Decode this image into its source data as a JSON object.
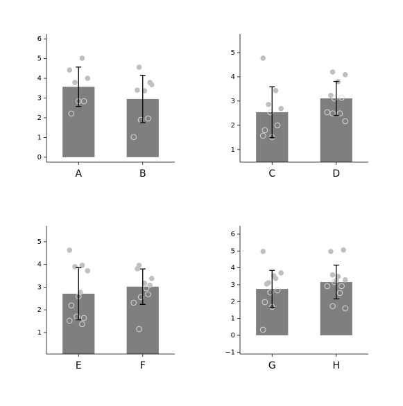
{
  "chart_data": [
    {
      "type": "bar",
      "categories": [
        "A",
        "B"
      ],
      "values": [
        3.57,
        2.95
      ],
      "errors": [
        1.0,
        1.2
      ],
      "color": "#7f7f7f",
      "ylim": [
        -0.25,
        6.25
      ],
      "yticks": [
        0,
        1,
        2,
        3,
        4,
        5,
        6
      ],
      "filled_points": [
        [
          4.42,
          5.02,
          3.79,
          4.0
        ],
        [
          4.56,
          3.68,
          3.37,
          3.4,
          3.79
        ]
      ],
      "hollow_points": [
        [
          2.84,
          2.21,
          2.84
        ],
        [
          1.96,
          1.89,
          1.02
        ]
      ]
    },
    {
      "type": "bar",
      "categories": [
        "C",
        "D"
      ],
      "values": [
        2.54,
        3.11
      ],
      "errors": [
        1.05,
        0.7
      ],
      "color": "#7f7f7f",
      "ylim": [
        0.48,
        5.77
      ],
      "yticks": [
        1,
        2,
        3,
        4,
        5
      ],
      "filled_points": [
        [
          4.77,
          3.43,
          2.86,
          2.69
        ],
        [
          4.2,
          4.09,
          3.8,
          3.23
        ]
      ],
      "hollow_points": [
        [
          1.51,
          1.8,
          2.0,
          2.54,
          1.57
        ],
        [
          3.14,
          3.11,
          2.54,
          2.49,
          2.49,
          2.17
        ]
      ]
    },
    {
      "type": "bar",
      "categories": [
        "E",
        "F"
      ],
      "values": [
        2.71,
        3.02
      ],
      "errors": [
        1.15,
        0.78
      ],
      "color": "#7f7f7f",
      "ylim": [
        0.05,
        5.7
      ],
      "yticks": [
        1,
        2,
        3,
        4,
        5
      ],
      "filled_points": [
        [
          4.63,
          3.96,
          3.9,
          3.72,
          2.77
        ],
        [
          3.96,
          3.38,
          3.17,
          3.81,
          3.08
        ]
      ],
      "hollow_points": [
        [
          2.59,
          2.19,
          1.64,
          1.7,
          1.52,
          1.37
        ],
        [
          2.68,
          2.56,
          2.31,
          2.95,
          1.15
        ]
      ]
    },
    {
      "type": "bar",
      "categories": [
        "G",
        "H"
      ],
      "values": [
        2.75,
        3.16
      ],
      "errors": [
        1.1,
        1.0
      ],
      "color": "#7f7f7f",
      "ylim": [
        -1.11,
        6.49
      ],
      "yticks": [
        {
          "value": -1,
          "label": "−1"
        },
        0,
        1,
        2,
        3,
        4,
        5,
        6
      ],
      "filled_points": [
        [
          4.97,
          3.37,
          3.12,
          3.7,
          3.53,
          3.04
        ],
        [
          3.58,
          3.29,
          3.49,
          4.97,
          5.06,
          3.25
        ]
      ],
      "hollow_points": [
        [
          1.69,
          1.97,
          2.67,
          2.55,
          0.33
        ],
        [
          2.92,
          3.16,
          2.92,
          2.51,
          1.73,
          1.6
        ]
      ]
    }
  ]
}
